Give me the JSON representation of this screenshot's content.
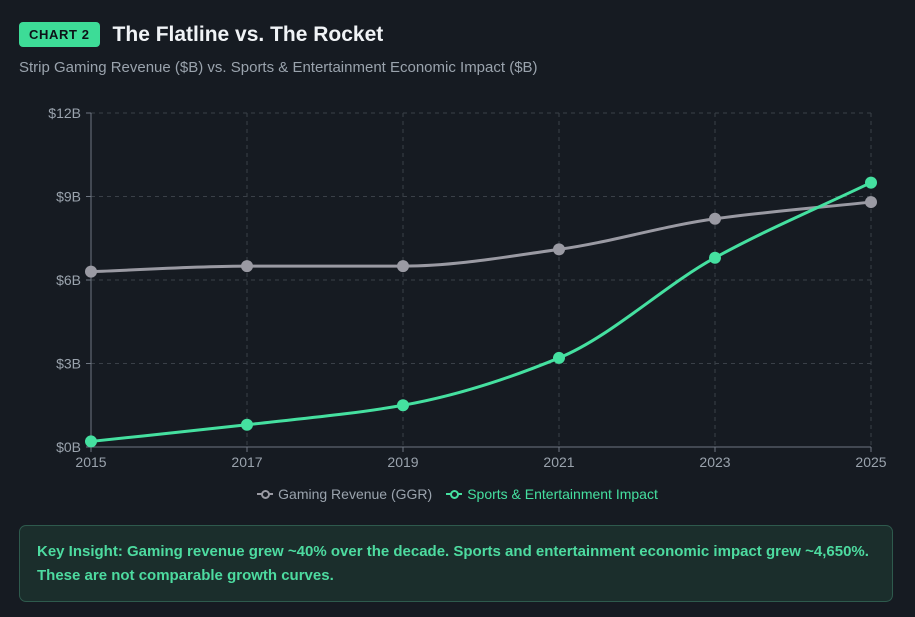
{
  "header": {
    "badge": "CHART 2",
    "title": "The Flatline vs. The Rocket",
    "subtitle": "Strip Gaming Revenue ($B) vs. Sports & Entertainment Economic Impact ($B)"
  },
  "colors": {
    "gaming": "#9a9aa3",
    "sports": "#45e0a0",
    "grid": "#3a4048",
    "axis_text": "#9aa3ad"
  },
  "chart_data": {
    "type": "line",
    "x": [
      "2015",
      "2017",
      "2019",
      "2021",
      "2023",
      "2025"
    ],
    "x_numeric": [
      2015,
      2017,
      2019,
      2021,
      2023,
      2025
    ],
    "series": [
      {
        "name": "Gaming Revenue (GGR)",
        "values": [
          6.3,
          6.5,
          6.5,
          7.1,
          8.2,
          8.8
        ]
      },
      {
        "name": "Sports & Entertainment Impact",
        "values": [
          0.2,
          0.8,
          1.5,
          3.2,
          6.8,
          9.5
        ]
      }
    ],
    "yticks": [
      "$0B",
      "$3B",
      "$6B",
      "$9B",
      "$12B"
    ],
    "ytick_values": [
      0,
      3,
      6,
      9,
      12
    ],
    "ylim": [
      0,
      12
    ],
    "xlim": [
      2015,
      2025
    ],
    "grid": true,
    "legend": "bottom-center"
  },
  "insight": {
    "text": "Key Insight: Gaming revenue grew ~40% over the decade. Sports and entertainment economic impact grew ~4,650%. These are not comparable growth curves."
  }
}
